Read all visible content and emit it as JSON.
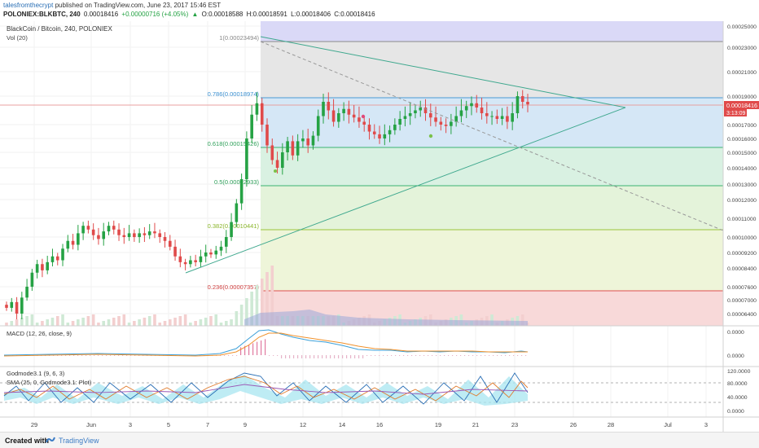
{
  "header": {
    "author": "talesfromthecrypt",
    "published_text": "published on TradingView.com, June 23, 2017 15:46 EST",
    "symbol": "POLONIEX:BLKBTC, 240",
    "last": "0.00018416",
    "change": "+0.00000716 (+4.05%)",
    "open": "O:0.00018588",
    "high": "H:0.00018591",
    "low": "L:0.00018406",
    "close": "C:0.00018416"
  },
  "footer": {
    "created_with": "Created with",
    "brand": "TradingView"
  },
  "colors": {
    "up": "#25a244",
    "down": "#e04a4a",
    "ema_fast": "#3b9fd8",
    "ema_slow": "#f0902a"
  },
  "chart_data": [
    {
      "type": "candlestick",
      "title": "BlackCoin / Bitcoin, 240, POLONIEX",
      "indicator_label": "Vol (20)",
      "x_ticks": [
        "29",
        "Jun",
        "3",
        "5",
        "7",
        "9",
        "12",
        "14",
        "16",
        "19",
        "21",
        "23",
        "26",
        "28",
        "Jul",
        "3"
      ],
      "y_ticks": [
        "0.00025000",
        "0.00023000",
        "0.00021000",
        "0.00019000",
        "0.00017000",
        "0.00016000",
        "0.00015000",
        "0.00014000",
        "0.00013000",
        "0.00012000",
        "0.00011000",
        "0.00010000",
        "0.00009200",
        "0.00008400",
        "0.00007600",
        "0.00007000",
        "0.00006400"
      ],
      "last_price_label": "0.00018416",
      "countdown_label": "3:13:09",
      "fib_levels": [
        {
          "ratio": "1",
          "price": "0.00023494",
          "label": "1(0.00023494)"
        },
        {
          "ratio": "0.786",
          "price": "0.00018974",
          "label": "0.786(0.00018974)"
        },
        {
          "ratio": "0.618",
          "price": "0.00015426",
          "label": "0.618(0.00015426)"
        },
        {
          "ratio": "0.5",
          "price": "0.00012933",
          "label": "0.5(0.00012933)"
        },
        {
          "ratio": "0.382",
          "price": "0.00010441",
          "label": "0.382(0.00010441)"
        },
        {
          "ratio": "0.236",
          "price": "0.00007357",
          "label": "0.236(0.00007357)"
        }
      ],
      "closes": [
        6.65e-05,
        6.9e-05,
        6.4e-05,
        7.1e-05,
        7.6e-05,
        8.2e-05,
        8.6e-05,
        8.3e-05,
        8.7e-05,
        9e-05,
        8.8e-05,
        9.4e-05,
        9.8e-05,
        9.6e-05,
        0.000102,
        0.000106,
        0.000104,
        0.000101,
        9.9e-05,
        0.000103,
        0.000106,
        0.000104,
        0.000101,
        0.0001,
        0.000102,
        0.0001,
        0.000102,
        0.000101,
        0.000103,
        0.000102,
        0.0001,
        9.8e-05,
        9.5e-05,
        9e-05,
        8.7e-05,
        8.6e-05,
        8.8e-05,
        8.7e-05,
        9e-05,
        9.2e-05,
        9.1e-05,
        9.3e-05,
        9.5e-05,
        0.0001,
        0.000108,
        0.000118,
        0.000133,
        0.00016,
        0.000177,
        0.000185,
        0.00017,
        0.000155,
        0.000145,
        0.00014,
        0.00015,
        0.000158,
        0.000148,
        0.000158,
        0.00016,
        0.000155,
        0.000162,
        0.000176,
        0.000186,
        0.00018,
        0.000172,
        0.000178,
        0.000181,
        0.000177,
        0.000175,
        0.000172,
        0.00017,
        0.000165,
        0.000163,
        0.00016,
        0.000163,
        0.000166,
        0.00017,
        0.000174,
        0.000176,
        0.000178,
        0.00018,
        0.000182,
        0.000178,
        0.000175,
        0.000172,
        0.00017,
        0.000169,
        0.000172,
        0.000176,
        0.00018,
        0.000183,
        0.000185,
        0.000182,
        0.000178,
        0.000176,
        0.000176,
        0.000174,
        0.000176,
        0.000172,
        0.000178,
        0.00019,
        0.000186,
        0.0001842
      ]
    },
    {
      "type": "line",
      "title": "MACD (12, 26, close, 9)",
      "y_ticks": [
        "0.0000",
        "0.0000"
      ]
    },
    {
      "type": "line",
      "title": "Godmode3.1 (9, 6, 3)",
      "subtitle": "SMA (25, 0, Godmode3.1: Plot)",
      "y_ticks": [
        "120.0000",
        "80.0000",
        "40.0000",
        "0.0000"
      ]
    }
  ]
}
